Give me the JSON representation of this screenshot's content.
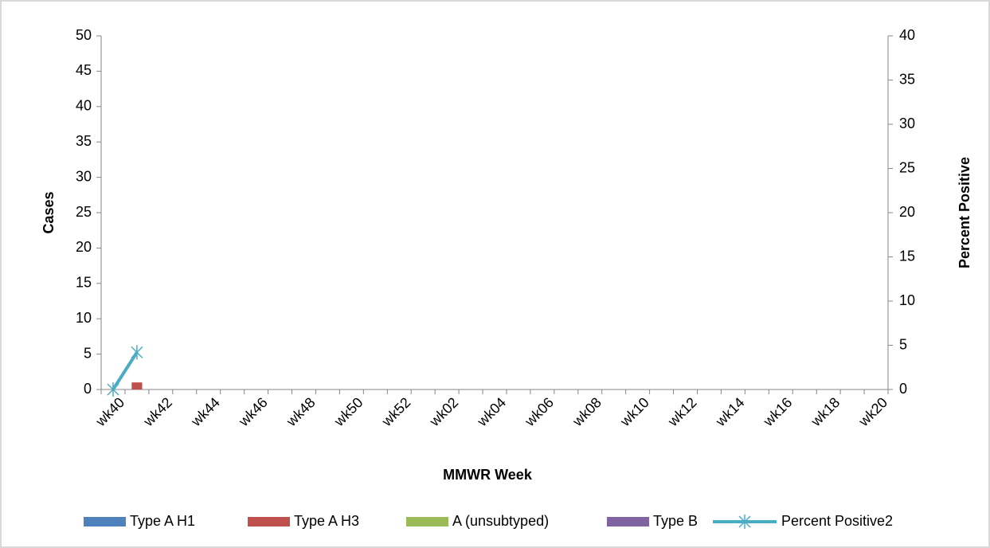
{
  "chart_data": {
    "type": "bar_line",
    "x_label": "MMWR Week",
    "y_label": "Cases",
    "y2_label": "Percent Positive",
    "categories": [
      "wk40",
      null,
      "wk42",
      null,
      "wk44",
      null,
      "wk46",
      null,
      "wk48",
      null,
      "wk50",
      null,
      "wk52",
      null,
      "wk02",
      null,
      "wk04",
      null,
      "wk06",
      null,
      "wk08",
      null,
      "wk10",
      null,
      "wk12",
      null,
      "wk14",
      null,
      "wk16",
      null,
      "wk18",
      null,
      "wk20"
    ],
    "series": [
      {
        "name": "Type A H1",
        "color": "#4f81bd",
        "type": "bar",
        "values": [
          0,
          0,
          null,
          null,
          null,
          null,
          null,
          null,
          null,
          null,
          null,
          null,
          null,
          null,
          null,
          null,
          null,
          null,
          null,
          null,
          null,
          null,
          null,
          null,
          null,
          null,
          null,
          null,
          null,
          null,
          null,
          null,
          null
        ]
      },
      {
        "name": "Type A H3",
        "color": "#c0504d",
        "type": "bar",
        "values": [
          0,
          1,
          null,
          null,
          null,
          null,
          null,
          null,
          null,
          null,
          null,
          null,
          null,
          null,
          null,
          null,
          null,
          null,
          null,
          null,
          null,
          null,
          null,
          null,
          null,
          null,
          null,
          null,
          null,
          null,
          null,
          null,
          null
        ]
      },
      {
        "name": "A (unsubtyped)",
        "color": "#9bbb59",
        "type": "bar",
        "values": [
          0,
          0,
          null,
          null,
          null,
          null,
          null,
          null,
          null,
          null,
          null,
          null,
          null,
          null,
          null,
          null,
          null,
          null,
          null,
          null,
          null,
          null,
          null,
          null,
          null,
          null,
          null,
          null,
          null,
          null,
          null,
          null,
          null
        ]
      },
      {
        "name": "Type B",
        "color": "#8064a2",
        "type": "bar",
        "values": [
          0,
          0,
          null,
          null,
          null,
          null,
          null,
          null,
          null,
          null,
          null,
          null,
          null,
          null,
          null,
          null,
          null,
          null,
          null,
          null,
          null,
          null,
          null,
          null,
          null,
          null,
          null,
          null,
          null,
          null,
          null,
          null,
          null
        ]
      },
      {
        "name": "Percent Positive2",
        "color": "#4bacc6",
        "type": "line",
        "axis": "y2",
        "values": [
          0,
          4.2,
          null,
          null,
          null,
          null,
          null,
          null,
          null,
          null,
          null,
          null,
          null,
          null,
          null,
          null,
          null,
          null,
          null,
          null,
          null,
          null,
          null,
          null,
          null,
          null,
          null,
          null,
          null,
          null,
          null,
          null,
          null
        ]
      }
    ],
    "ylim": [
      0,
      50
    ],
    "yticks": [
      0,
      5,
      10,
      15,
      20,
      25,
      30,
      35,
      40,
      45,
      50
    ],
    "y2lim": [
      0,
      40
    ],
    "y2ticks": [
      0,
      5,
      10,
      15,
      20,
      25,
      30,
      35,
      40
    ],
    "stacked": true,
    "legend": "bottom"
  }
}
